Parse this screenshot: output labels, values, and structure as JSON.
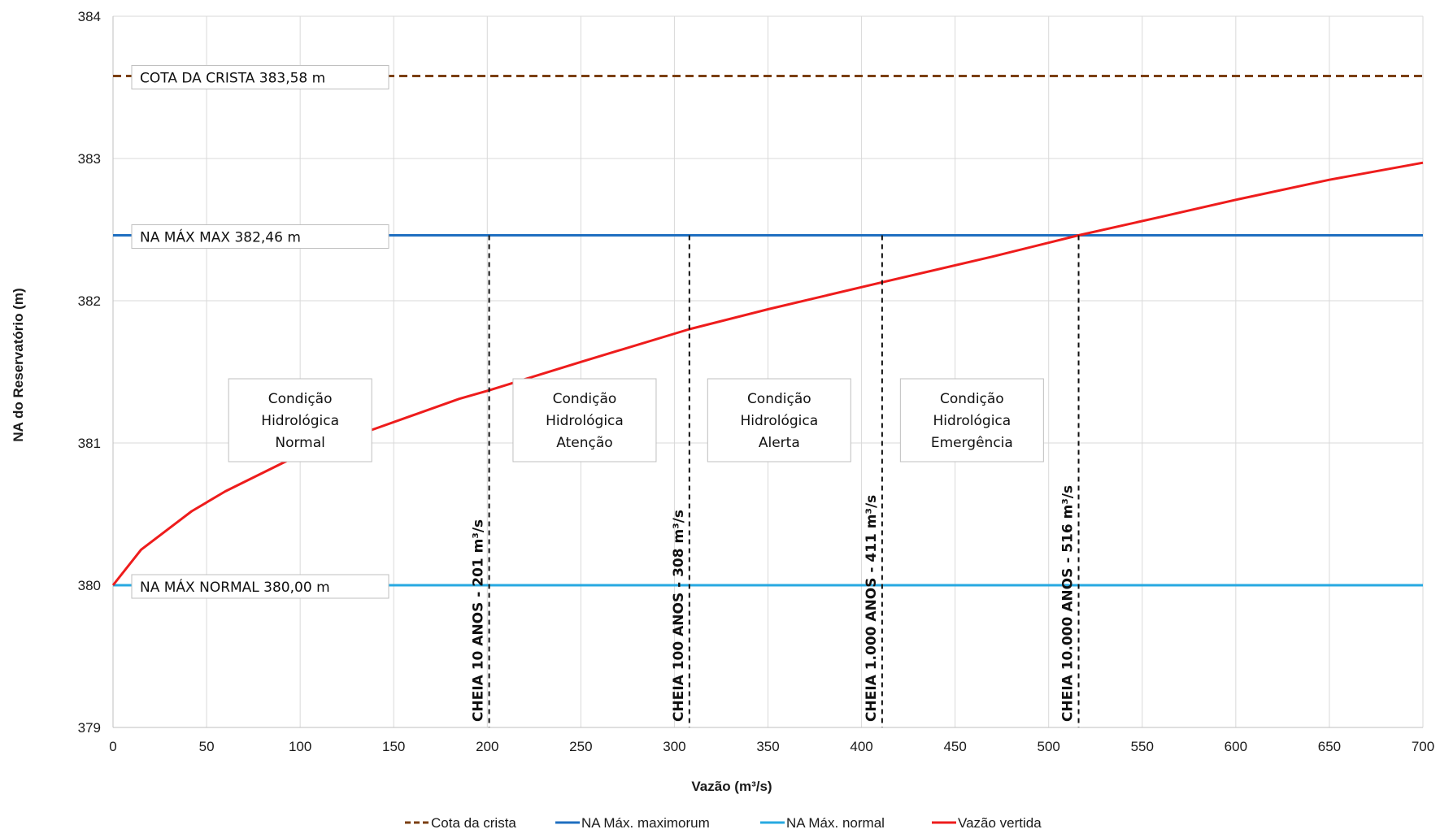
{
  "chart_data": {
    "type": "line",
    "title": "",
    "xlabel": "Vazão (m³/s)",
    "ylabel": "NA do Reservatório (m)",
    "xlim": [
      0,
      700
    ],
    "ylim": [
      379,
      384
    ],
    "xticks": [
      0,
      50,
      100,
      150,
      200,
      250,
      300,
      350,
      400,
      450,
      500,
      550,
      600,
      650,
      700
    ],
    "yticks": [
      379,
      380,
      381,
      382,
      383,
      384
    ],
    "grid": true,
    "legend_position": "bottom",
    "series": [
      {
        "name": "Cota da crista",
        "color": "#7b3f12",
        "style": "dashed",
        "x": [
          0,
          700
        ],
        "y": [
          383.58,
          383.58
        ]
      },
      {
        "name": "NA Máx. maximorum",
        "color": "#1f6fc0",
        "style": "solid",
        "x": [
          0,
          700
        ],
        "y": [
          382.46,
          382.46
        ]
      },
      {
        "name": "NA Máx. normal",
        "color": "#27a9e1",
        "style": "solid",
        "x": [
          0,
          700
        ],
        "y": [
          380.0,
          380.0
        ]
      },
      {
        "name": "Vazão vertida",
        "color": "#ee1c1c",
        "style": "solid",
        "x": [
          0,
          15,
          42,
          60,
          100,
          140,
          185,
          201,
          250,
          308,
          350,
          411,
          470,
          516,
          560,
          600,
          650,
          700
        ],
        "y": [
          380.0,
          380.25,
          380.52,
          380.66,
          380.92,
          381.1,
          381.31,
          381.37,
          381.57,
          381.8,
          381.94,
          382.13,
          382.31,
          382.46,
          382.59,
          382.71,
          382.85,
          382.97
        ]
      }
    ],
    "reference_labels": [
      {
        "text": "COTA DA CRISTA 383,58 m",
        "y": 383.58
      },
      {
        "text": "NA MÁX MAX 382,46 m",
        "y": 382.46
      },
      {
        "text": "NA MÁX NORMAL 380,00 m",
        "y": 380.0
      }
    ],
    "flood_markers": [
      {
        "text": "CHEIA 10 ANOS - 201 m³/s",
        "x": 201
      },
      {
        "text": "CHEIA 100 ANOS - 308 m³/s",
        "x": 308
      },
      {
        "text": "CHEIA 1.000 ANOS - 411 m³/s",
        "x": 411
      },
      {
        "text": "CHEIA 10.000 ANOS - 516 m³/s",
        "x": 516
      }
    ],
    "zones": [
      {
        "lines": [
          "Condição",
          "Hidrológica",
          "Normal"
        ],
        "x": 100,
        "y": 381.16
      },
      {
        "lines": [
          "Condição",
          "Hidrológica",
          "Atenção"
        ],
        "x": 252,
        "y": 381.16
      },
      {
        "lines": [
          "Condição",
          "Hidrológica",
          "Alerta"
        ],
        "x": 356,
        "y": 381.16
      },
      {
        "lines": [
          "Condição",
          "Hidrológica",
          "Emergência"
        ],
        "x": 459,
        "y": 381.16
      }
    ]
  }
}
